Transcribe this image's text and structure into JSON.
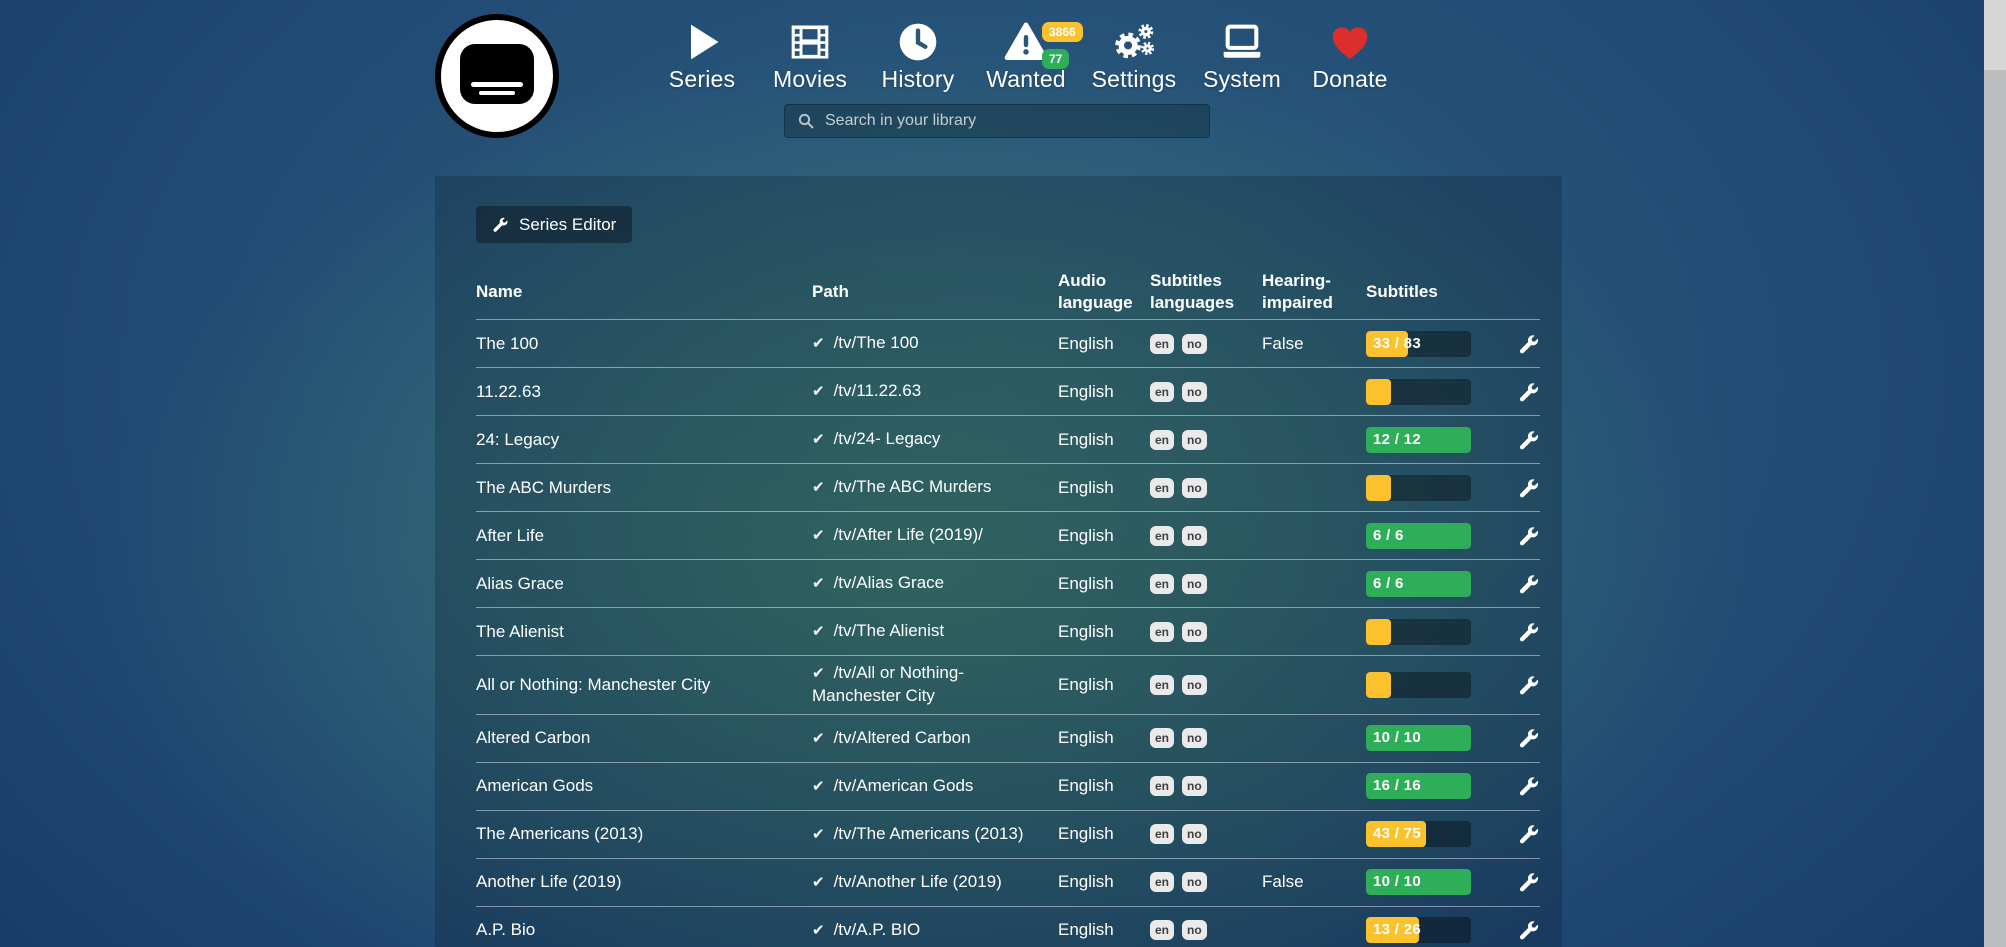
{
  "palette": {
    "yellow": "#fcc22d",
    "green": "#2fae59",
    "heart_red": "#dd2e2e",
    "icon_white": "#ffffff"
  },
  "header": {
    "nav": [
      {
        "label": "Series",
        "icon": "play-icon"
      },
      {
        "label": "Movies",
        "icon": "film-icon"
      },
      {
        "label": "History",
        "icon": "clock-icon"
      },
      {
        "label": "Wanted",
        "icon": "warning-triangle-icon",
        "badges": [
          {
            "text": "3866",
            "color": "yellow"
          },
          {
            "text": "77",
            "color": "green"
          }
        ]
      },
      {
        "label": "Settings",
        "icon": "gears-icon"
      },
      {
        "label": "System",
        "icon": "laptop-icon"
      },
      {
        "label": "Donate",
        "icon": "heart-icon"
      }
    ],
    "search": {
      "placeholder": "Search in your library",
      "value": ""
    }
  },
  "toolbar": {
    "series_editor_label": "Series Editor"
  },
  "table": {
    "headers": [
      "Name",
      "Path",
      "Audio language",
      "Subtitles languages",
      "Hearing-impaired",
      "Subtitles"
    ],
    "rows": [
      {
        "name": "The 100",
        "path": "/tv/The 100",
        "audio": "English",
        "subtitle_languages": [
          "en",
          "no"
        ],
        "hearing_impaired": "False",
        "subtitles": {
          "label": "33 / 83",
          "percent": 40,
          "color": "yellow"
        }
      },
      {
        "name": "11.22.63",
        "path": "/tv/11.22.63",
        "audio": "English",
        "subtitle_languages": [
          "en",
          "no"
        ],
        "hearing_impaired": "",
        "subtitles": {
          "label": "",
          "percent": 24,
          "color": "yellow"
        }
      },
      {
        "name": "24: Legacy",
        "path": "/tv/24- Legacy",
        "audio": "English",
        "subtitle_languages": [
          "en",
          "no"
        ],
        "hearing_impaired": "",
        "subtitles": {
          "label": "12 / 12",
          "percent": 100,
          "color": "green"
        }
      },
      {
        "name": "The ABC Murders",
        "path": "/tv/The ABC Murders",
        "audio": "English",
        "subtitle_languages": [
          "en",
          "no"
        ],
        "hearing_impaired": "",
        "subtitles": {
          "label": "",
          "percent": 24,
          "color": "yellow"
        }
      },
      {
        "name": "After Life",
        "path": "/tv/After Life (2019)/",
        "audio": "English",
        "subtitle_languages": [
          "en",
          "no"
        ],
        "hearing_impaired": "",
        "subtitles": {
          "label": "6 / 6",
          "percent": 100,
          "color": "green"
        }
      },
      {
        "name": "Alias Grace",
        "path": "/tv/Alias Grace",
        "audio": "English",
        "subtitle_languages": [
          "en",
          "no"
        ],
        "hearing_impaired": "",
        "subtitles": {
          "label": "6 / 6",
          "percent": 100,
          "color": "green"
        }
      },
      {
        "name": "The Alienist",
        "path": "/tv/The Alienist",
        "audio": "English",
        "subtitle_languages": [
          "en",
          "no"
        ],
        "hearing_impaired": "",
        "subtitles": {
          "label": "",
          "percent": 24,
          "color": "yellow"
        }
      },
      {
        "name": "All or Nothing: Manchester City",
        "path": "/tv/All or Nothing- Manchester City",
        "audio": "English",
        "subtitle_languages": [
          "en",
          "no"
        ],
        "hearing_impaired": "",
        "subtitles": {
          "label": "",
          "percent": 24,
          "color": "yellow"
        }
      },
      {
        "name": "Altered Carbon",
        "path": "/tv/Altered Carbon",
        "audio": "English",
        "subtitle_languages": [
          "en",
          "no"
        ],
        "hearing_impaired": "",
        "subtitles": {
          "label": "10 / 10",
          "percent": 100,
          "color": "green"
        }
      },
      {
        "name": "American Gods",
        "path": "/tv/American Gods",
        "audio": "English",
        "subtitle_languages": [
          "en",
          "no"
        ],
        "hearing_impaired": "",
        "subtitles": {
          "label": "16 / 16",
          "percent": 100,
          "color": "green"
        }
      },
      {
        "name": "The Americans (2013)",
        "path": "/tv/The Americans (2013)",
        "audio": "English",
        "subtitle_languages": [
          "en",
          "no"
        ],
        "hearing_impaired": "",
        "subtitles": {
          "label": "43 / 75",
          "percent": 57,
          "color": "yellow"
        }
      },
      {
        "name": "Another Life (2019)",
        "path": "/tv/Another Life (2019)",
        "audio": "English",
        "subtitle_languages": [
          "en",
          "no"
        ],
        "hearing_impaired": "False",
        "subtitles": {
          "label": "10 / 10",
          "percent": 100,
          "color": "green"
        }
      },
      {
        "name": "A.P. Bio",
        "path": "/tv/A.P. BIO",
        "audio": "English",
        "subtitle_languages": [
          "en",
          "no"
        ],
        "hearing_impaired": "",
        "subtitles": {
          "label": "13 / 26",
          "percent": 50,
          "color": "yellow"
        }
      }
    ]
  }
}
